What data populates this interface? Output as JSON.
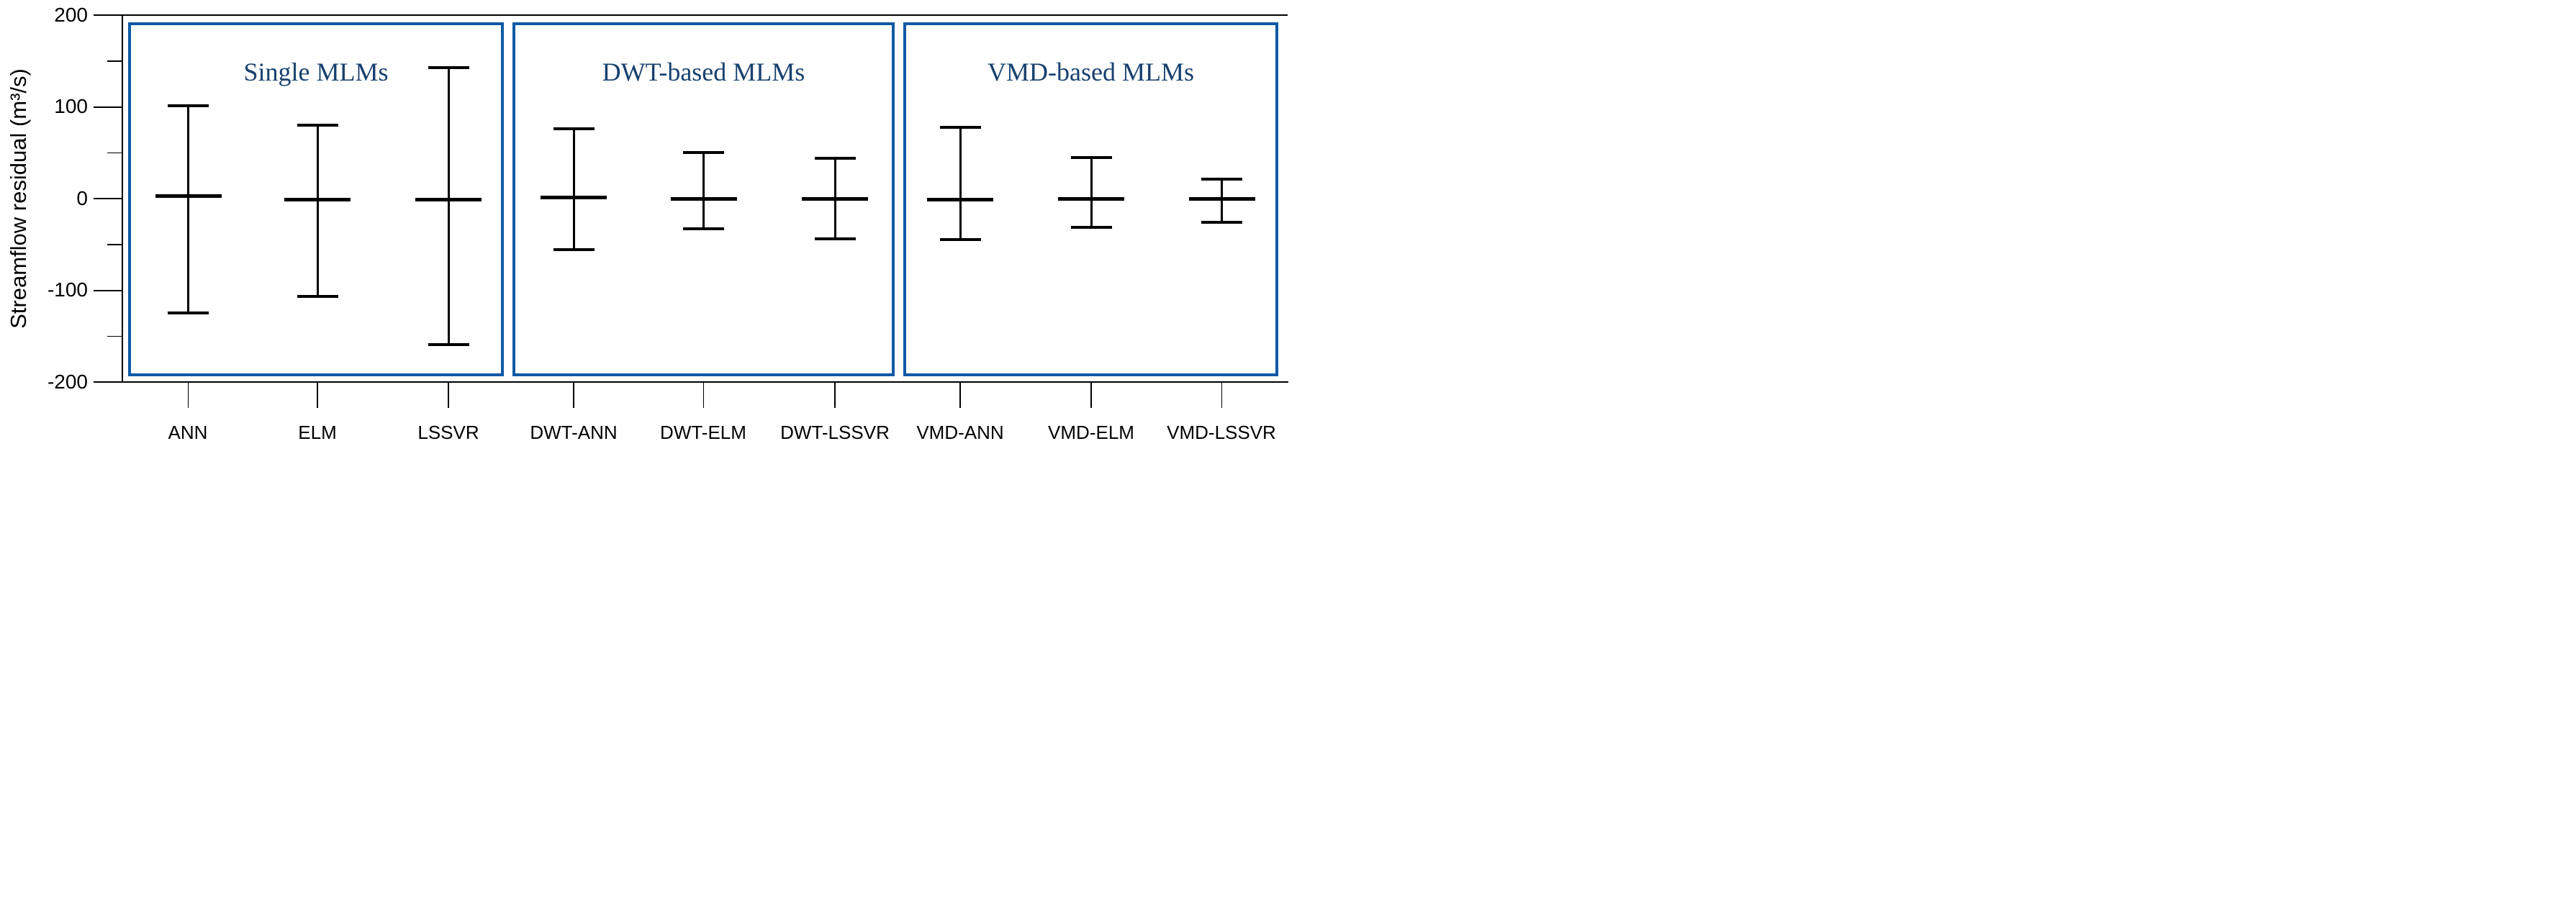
{
  "figure": {
    "y_axis": {
      "title": "Streamflow residual (m³/s)",
      "tick_labels": [
        "200",
        "100",
        "0",
        "-100",
        "-200"
      ]
    },
    "groups": [
      {
        "title": "Single MLMs",
        "models": [
          "ANN",
          "ELM",
          "LSSVR"
        ]
      },
      {
        "title": "DWT-based MLMs",
        "models": [
          "DWT-ANN",
          "DWT-ELM",
          "DWT-LSSVR"
        ]
      },
      {
        "title": "VMD-based MLMs",
        "models": [
          "VMD-ANN",
          "VMD-ELM",
          "VMD-LSSVR"
        ]
      }
    ],
    "colors": {
      "box_border": "#0F5AA5",
      "group_title_text": "#17406E",
      "error_bars": "#000000",
      "axis_text": "#000000"
    }
  },
  "chart_data": {
    "type": "errorbar",
    "title": "",
    "xlabel": "",
    "ylabel": "Streamflow residual (m³/s)",
    "ylim": [
      -200,
      200
    ],
    "yticks_major": [
      200,
      100,
      0,
      -100,
      -200
    ],
    "yticks_minor": [
      150,
      50,
      -50,
      -150
    ],
    "grid": false,
    "legend": "none",
    "categories": [
      "ANN",
      "ELM",
      "LSSVR",
      "DWT-ANN",
      "DWT-ELM",
      "DWT-LSSVR",
      "VMD-ANN",
      "VMD-ELM",
      "VMD-LSSVR"
    ],
    "series": [
      {
        "name": "ANN",
        "group": "Single MLMs",
        "upper": 101,
        "center": 3,
        "lower": -125
      },
      {
        "name": "ELM",
        "group": "Single MLMs",
        "upper": 80,
        "center": -1,
        "lower": -107
      },
      {
        "name": "LSSVR",
        "group": "Single MLMs",
        "upper": 143,
        "center": -1,
        "lower": -159
      },
      {
        "name": "DWT-ANN",
        "group": "DWT-based MLMs",
        "upper": 76,
        "center": 1,
        "lower": -56
      },
      {
        "name": "DWT-ELM",
        "group": "DWT-based MLMs",
        "upper": 50,
        "center": 0,
        "lower": -33
      },
      {
        "name": "DWT-LSSVR",
        "group": "DWT-based MLMs",
        "upper": 44,
        "center": 0,
        "lower": -44
      },
      {
        "name": "VMD-ANN",
        "group": "VMD-based MLMs",
        "upper": 78,
        "center": -1,
        "lower": -45
      },
      {
        "name": "VMD-ELM",
        "group": "VMD-based MLMs",
        "upper": 45,
        "center": 0,
        "lower": -31
      },
      {
        "name": "VMD-LSSVR",
        "group": "VMD-based MLMs",
        "upper": 21,
        "center": 0,
        "lower": -26
      }
    ]
  }
}
